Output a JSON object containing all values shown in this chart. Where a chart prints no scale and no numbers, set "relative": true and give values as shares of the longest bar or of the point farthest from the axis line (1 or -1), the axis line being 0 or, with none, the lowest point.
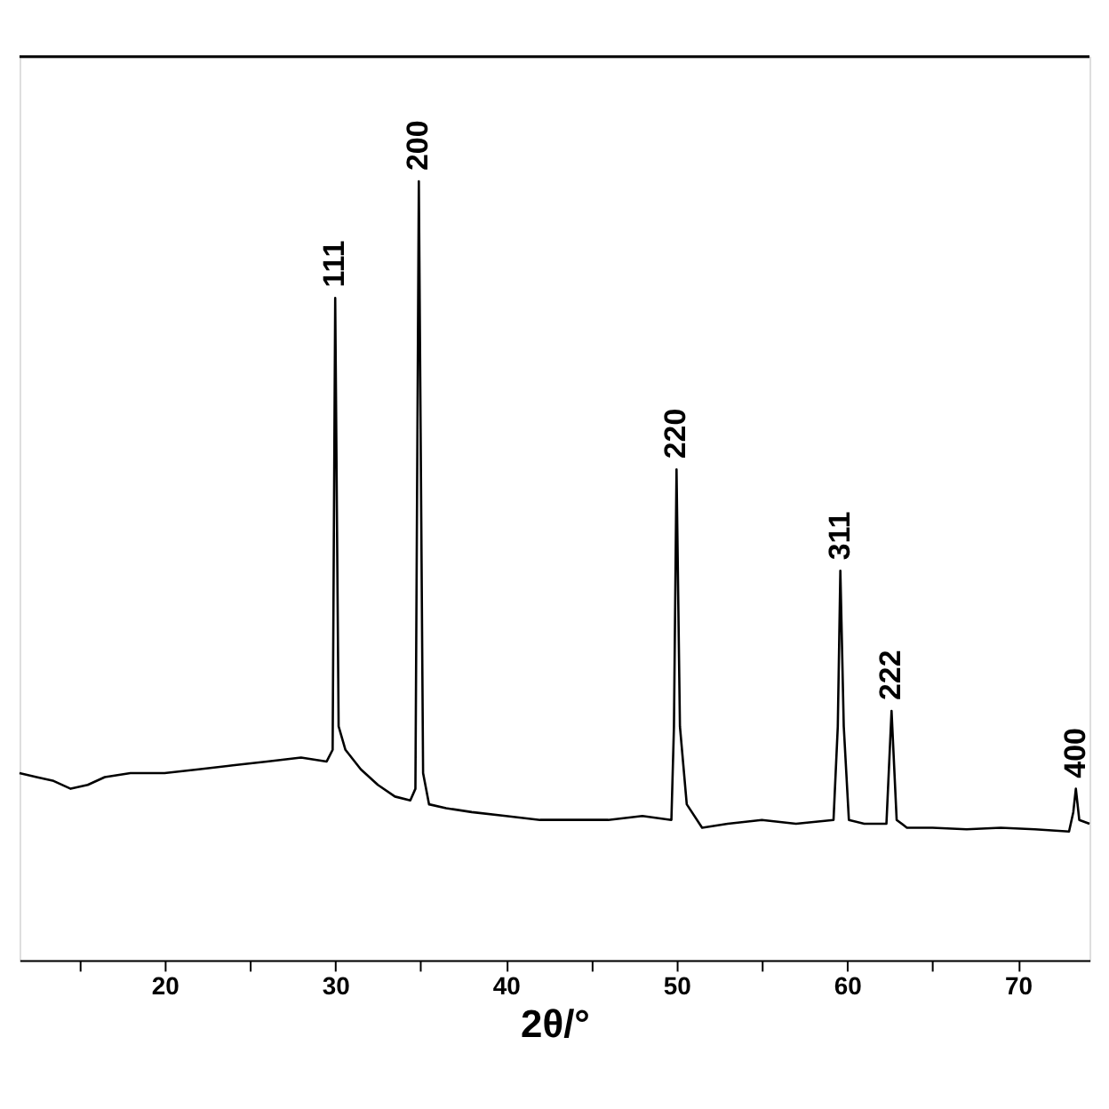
{
  "chart_data": {
    "type": "line",
    "relative": true,
    "xlabel": "2θ/°",
    "tick_labels": "x",
    "grid": false,
    "marker": "none",
    "line_style": "solid",
    "xlim": [
      11.5,
      74.2
    ],
    "xticks": [
      {
        "value": 15,
        "label": null
      },
      20,
      {
        "value": 25,
        "label": null
      },
      30,
      {
        "value": 35,
        "label": null
      },
      40,
      {
        "value": 45,
        "label": null
      },
      50,
      {
        "value": 55,
        "label": null
      },
      60,
      {
        "value": 65,
        "label": null
      },
      70
    ],
    "x": [
      11.5,
      12.5,
      13.5,
      14.5,
      15.5,
      16.5,
      18,
      20,
      22,
      24,
      26,
      28,
      29.5,
      29.85,
      30.0,
      30.2,
      30.6,
      31.5,
      32.5,
      33.5,
      34.4,
      34.7,
      34.9,
      35.15,
      35.5,
      36.5,
      38,
      40,
      42,
      44,
      46,
      48,
      49.7,
      49.85,
      50.0,
      50.2,
      50.6,
      51.5,
      53,
      55,
      57,
      59.2,
      59.45,
      59.6,
      59.8,
      60.1,
      61,
      62.3,
      62.6,
      62.9,
      63.5,
      65,
      67,
      69,
      71,
      73,
      73.25,
      73.4,
      73.6,
      74.2
    ],
    "series": [
      {
        "color": "#000000",
        "values": [
          0.24,
          0.235,
          0.23,
          0.22,
          0.225,
          0.235,
          0.24,
          0.24,
          0.245,
          0.25,
          0.255,
          0.26,
          0.255,
          0.27,
          0.85,
          0.3,
          0.27,
          0.245,
          0.225,
          0.21,
          0.205,
          0.22,
          1.0,
          0.24,
          0.2,
          0.195,
          0.19,
          0.185,
          0.18,
          0.18,
          0.18,
          0.185,
          0.18,
          0.3,
          0.63,
          0.3,
          0.2,
          0.17,
          0.175,
          0.18,
          0.175,
          0.18,
          0.3,
          0.5,
          0.3,
          0.18,
          0.175,
          0.175,
          0.32,
          0.18,
          0.17,
          0.17,
          0.168,
          0.17,
          0.168,
          0.165,
          0.19,
          0.22,
          0.18,
          0.175
        ]
      }
    ],
    "annotations": [
      {
        "text": "111",
        "x": 30.0,
        "y": 0.85
      },
      {
        "text": "200",
        "x": 34.9,
        "y": 1.0
      },
      {
        "text": "220",
        "x": 50.0,
        "y": 0.63
      },
      {
        "text": "311",
        "x": 59.6,
        "y": 0.5
      },
      {
        "text": "222",
        "x": 62.6,
        "y": 0.32
      },
      {
        "text": "400",
        "x": 73.4,
        "y": 0.22
      }
    ]
  }
}
